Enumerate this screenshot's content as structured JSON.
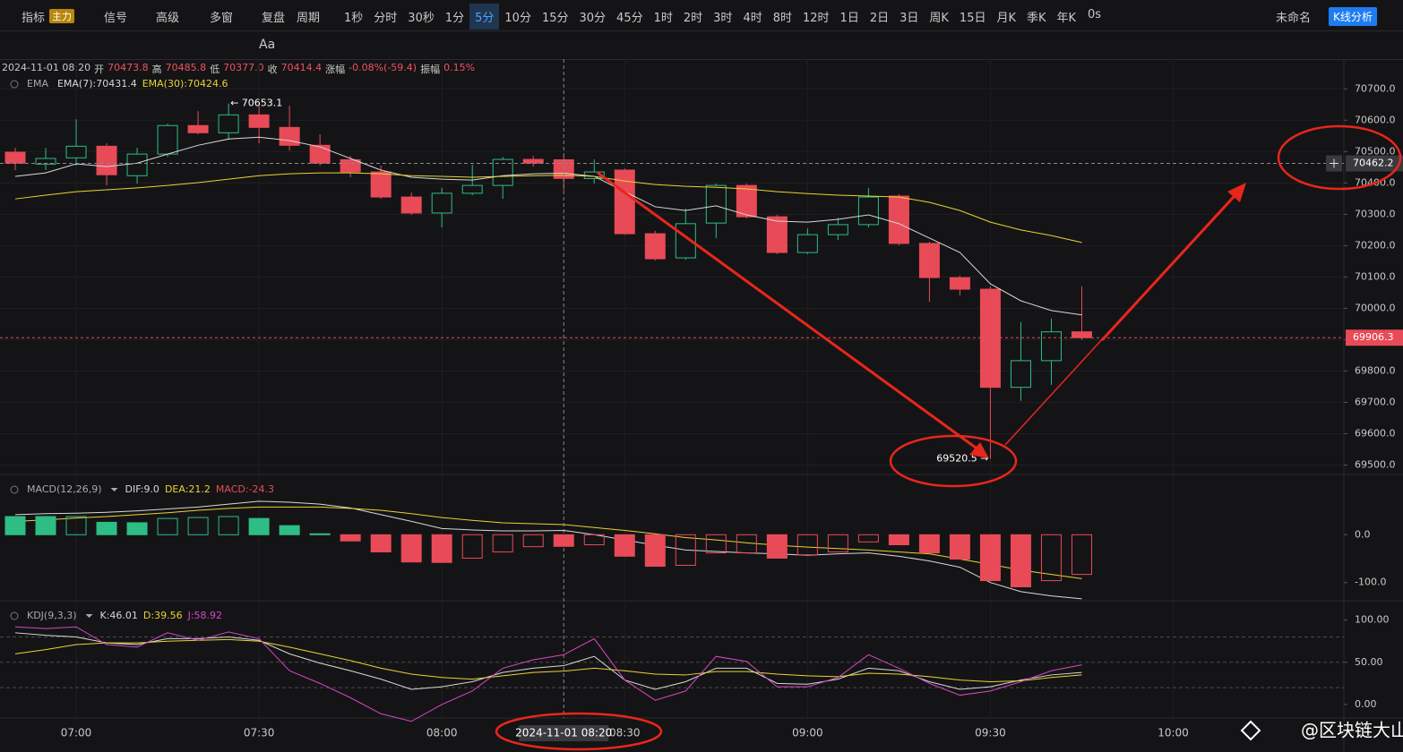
{
  "toolbar": {
    "indicators": "指标",
    "main": "主力",
    "signal": "信号",
    "advanced": "高级",
    "multi": "多窗",
    "replay": "复盘",
    "period": "周期",
    "intervals": [
      "1秒",
      "分时",
      "30秒",
      "1分",
      "5分",
      "10分",
      "15分",
      "30分",
      "45分",
      "1时",
      "2时",
      "3时",
      "4时",
      "8时",
      "12时",
      "1日",
      "2日",
      "3日",
      "周K",
      "15日",
      "月K",
      "季K",
      "年K"
    ],
    "active_index": 4,
    "timer": "0s",
    "layout_name": "未命名",
    "analysis": "K线分析",
    "text_tool": "Aa"
  },
  "info": {
    "datetime": "2024-11-01 08:20",
    "open_label": "开",
    "open": "70473.8",
    "high_label": "高",
    "high": "70485.8",
    "low_label": "低",
    "low": "70377.0",
    "close_label": "收",
    "close": "70414.4",
    "change_label": "涨幅",
    "change": "-0.08%(-59.4)",
    "amplitude_label": "振幅",
    "amplitude": "0.15%"
  },
  "watermark": "@区块链大山",
  "chart_data": [
    {
      "type": "candlestick",
      "title": "EMA",
      "up_color": "#2ebd85",
      "down_color": "#e84a57",
      "open": [
        70498,
        70460,
        70480,
        70517,
        70423,
        70492,
        70583,
        70560,
        70617,
        70577,
        70520,
        70474,
        70435,
        70355,
        70304,
        70367,
        70392,
        70475,
        70473.8,
        70414,
        70441,
        70238,
        70161,
        70272,
        70392,
        70292,
        70178,
        70235,
        70267,
        70358,
        70207,
        70098,
        70061,
        69748,
        69833,
        69925
      ],
      "high": [
        70512,
        70512,
        70603,
        70526,
        70512,
        70589,
        70629,
        70653.1,
        70646,
        70646,
        70555,
        70486,
        70455,
        70369,
        70384,
        70458,
        70483,
        70486,
        70485.8,
        70475,
        70446,
        70247,
        70318,
        70398,
        70398,
        70298,
        70255,
        70289,
        70384,
        70364,
        70213,
        70104,
        70070,
        69956,
        69967,
        70070
      ],
      "low": [
        70441,
        70441,
        70455,
        70392,
        70398,
        70483,
        70555,
        70538,
        70526,
        70503,
        70455,
        70418,
        70349,
        70298,
        70258,
        70361,
        70349,
        70452,
        70377.0,
        70398,
        70235,
        70153,
        70155,
        70224,
        70287,
        70173,
        70173,
        70218,
        70258,
        70201,
        70021,
        70041,
        69520.5,
        69705,
        69756,
        69899
      ],
      "close": [
        70463,
        70478,
        70517,
        70426,
        70492,
        70583,
        70560,
        70617,
        70577,
        70520,
        70463,
        70435,
        70355,
        70304,
        70367,
        70392,
        70475,
        70463,
        70414.4,
        70435,
        70238,
        70158,
        70270,
        70392,
        70292,
        70178,
        70235,
        70267,
        70355,
        70207,
        70098,
        70061,
        69748,
        69833,
        69925,
        69906.3
      ],
      "series": [
        {
          "name": "EMA(7):70431.4",
          "color": "#d8d8d8",
          "values": [
            70421,
            70432,
            70461,
            70452,
            70463,
            70492,
            70520,
            70540,
            70546,
            70535,
            70515,
            70478,
            70441,
            70418,
            70412,
            70409,
            70423,
            70429,
            70431.4,
            70421,
            70372,
            70324,
            70312,
            70327,
            70298,
            70278,
            70275,
            70284,
            70298,
            70270,
            70224,
            70178,
            70078,
            70024,
            69993,
            69979
          ]
        },
        {
          "name": "EMA(30):70424.6",
          "color": "#e8d335",
          "values": [
            70349,
            70361,
            70372,
            70378,
            70384,
            70392,
            70401,
            70412,
            70423,
            70429,
            70432,
            70432,
            70429,
            70423,
            70421,
            70418,
            70421,
            70423,
            70424.6,
            70421,
            70406,
            70395,
            70389,
            70386,
            70381,
            70372,
            70366,
            70361,
            70358,
            70355,
            70338,
            70312,
            70275,
            70250,
            70232,
            70210
          ]
        }
      ],
      "ylim": [
        69470,
        70795
      ],
      "yticks": [
        {
          "value": 70700,
          "label": "70700.0"
        },
        {
          "value": 70600,
          "label": "70600.0"
        },
        {
          "value": 70500,
          "label": "70500.0"
        },
        {
          "value": 70400,
          "label": "70400.0"
        },
        {
          "value": 70300,
          "label": "70300.0"
        },
        {
          "value": 70200,
          "label": "70200.0"
        },
        {
          "value": 70100,
          "label": "70100.0"
        },
        {
          "value": 70000,
          "label": "70000.0"
        },
        {
          "value": 69900,
          "label": "69900.0"
        },
        {
          "value": 69800,
          "label": "69800.0"
        },
        {
          "value": 69700,
          "label": "69700.0"
        },
        {
          "value": 69600,
          "label": "69600.0"
        },
        {
          "value": 69500,
          "label": "69500.0"
        }
      ],
      "xlim": [
        -0.5,
        43.6
      ],
      "xticks": [
        {
          "value": 2,
          "label": "07:00"
        },
        {
          "value": 8,
          "label": "07:30"
        },
        {
          "value": 14,
          "label": "08:00"
        },
        {
          "value": 20,
          "label": "08:30"
        },
        {
          "value": 26,
          "label": "09:00"
        },
        {
          "value": 32,
          "label": "09:30"
        },
        {
          "value": 38,
          "label": "10:00"
        }
      ],
      "crosshair": {
        "x": 18,
        "x_label": "2024-11-01 08:20",
        "y": 70462.2
      },
      "last_price": 69906.3,
      "annotations": [
        {
          "text": "← 70653.1",
          "x": 7,
          "y": 70653.1
        },
        {
          "text": "69520.5 →",
          "x": 32,
          "y": 69520.5
        }
      ]
    },
    {
      "type": "macd",
      "title": "MACD(12,26,9)",
      "up_color": "#2ebd85",
      "down_color": "#e84a57",
      "series": [
        {
          "name": "DIF:9.0",
          "color": "#d8d8d8",
          "values": [
            42,
            44,
            45,
            47,
            50,
            54,
            58,
            64,
            70,
            68,
            64,
            56,
            42,
            28,
            13,
            10,
            8,
            8,
            9.0,
            0,
            -11,
            -22,
            -32,
            -35,
            -38,
            -40,
            -43,
            -40,
            -38,
            -45,
            -55,
            -68,
            -100,
            -119,
            -128,
            -134
          ]
        },
        {
          "name": "DEA:21.2",
          "color": "#e8d335",
          "values": [
            28,
            31,
            35,
            38,
            42,
            46,
            51,
            55,
            58,
            58,
            58,
            55,
            51,
            44,
            36,
            30,
            25,
            23,
            21.2,
            15,
            9,
            2,
            -6,
            -11,
            -17,
            -22,
            -26,
            -29,
            -32,
            -36,
            -40,
            -51,
            -62,
            -74,
            -83,
            -92
          ]
        },
        {
          "name": "MACD:-24.3",
          "color": "#e84a57",
          "type": "histogram",
          "values": [
            38,
            38,
            38,
            26,
            25,
            34,
            36,
            38,
            34,
            19,
            2,
            -13,
            -36,
            -57,
            -58,
            -49,
            -36,
            -25,
            -24.3,
            -21,
            -45,
            -66,
            -64,
            -38,
            -38,
            -49,
            -42,
            -36,
            -15,
            -21,
            -38,
            -51,
            -96,
            -109,
            -96,
            -83
          ],
          "filled": [
            true,
            true,
            false,
            true,
            true,
            false,
            false,
            false,
            true,
            true,
            true,
            true,
            true,
            true,
            true,
            false,
            false,
            false,
            true,
            false,
            true,
            true,
            false,
            false,
            false,
            true,
            false,
            false,
            false,
            true,
            true,
            true,
            true,
            true,
            false,
            false
          ]
        }
      ],
      "ylim": [
        -138,
        126
      ],
      "yticks": [
        {
          "value": 0,
          "label": "0.0"
        },
        {
          "value": -100,
          "label": "-100.0"
        }
      ]
    },
    {
      "type": "kdj",
      "title": "KDJ(9,3,3)",
      "series": [
        {
          "name": "K:46.01",
          "color": "#d8d8d8",
          "values": [
            85,
            82,
            80,
            73,
            71,
            78,
            78,
            80,
            76,
            60,
            49,
            40,
            30,
            18,
            21,
            27,
            38,
            43,
            46.01,
            57,
            29,
            18,
            27,
            43,
            43,
            25,
            24,
            30,
            43,
            40,
            27,
            18,
            21,
            29,
            35,
            38
          ]
        },
        {
          "name": "D:39.56",
          "color": "#e8d335",
          "values": [
            60,
            65,
            71,
            73,
            73,
            75,
            76,
            77,
            75,
            68,
            60,
            52,
            43,
            36,
            32,
            30,
            34,
            38,
            39.56,
            43,
            40,
            36,
            35,
            39,
            39,
            36,
            34,
            33,
            37,
            36,
            33,
            29,
            27,
            28,
            32,
            35
          ]
        },
        {
          "name": "J:58.92",
          "color": "#d946c8",
          "values": [
            92,
            90,
            92,
            71,
            68,
            85,
            76,
            86,
            78,
            40,
            25,
            8,
            -11,
            -20,
            0,
            16,
            43,
            53,
            58.92,
            78,
            29,
            5,
            16,
            57,
            51,
            21,
            21,
            32,
            59,
            43,
            25,
            11,
            16,
            27,
            40,
            47
          ]
        }
      ],
      "levels": [
        80,
        50,
        20
      ],
      "ylim": [
        -16,
        123
      ],
      "yticks": [
        {
          "value": 100,
          "label": "100.00"
        },
        {
          "value": 50,
          "label": "50.00"
        },
        {
          "value": 0,
          "label": "0.00"
        }
      ]
    }
  ]
}
